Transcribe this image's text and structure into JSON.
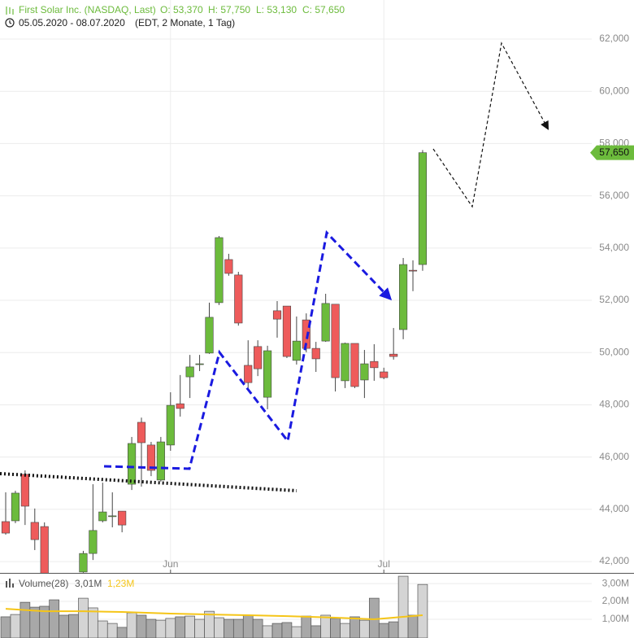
{
  "header": {
    "title": "First Solar Inc. (NASDAQ, Last)",
    "open": "O: 53,370",
    "high": "H: 57,750",
    "low": "L: 53,130",
    "close": "C: 57,650",
    "range": "05.05.2020 - 08.07.2020",
    "period": "(EDT, 2 Monate, 1 Tag)"
  },
  "chart_data": [
    {
      "type": "candlestick",
      "open": [
        43530,
        43560,
        45340,
        43500,
        43340,
        null,
        null,
        null,
        41600,
        42310,
        43560,
        43720,
        43930,
        44960,
        47330,
        46460,
        45120,
        46460,
        48040,
        49070,
        49540,
        49980,
        51910,
        53560,
        52970,
        49510,
        50230,
        48290,
        51600,
        51780,
        49700,
        51250,
        50160,
        50440,
        51850,
        48920,
        50350,
        48950,
        49660,
        49260,
        49940,
        50880,
        53150,
        53370
      ],
      "high": [
        44650,
        44710,
        45490,
        44030,
        43500,
        null,
        null,
        null,
        42410,
        44960,
        45020,
        44650,
        43930,
        46770,
        47510,
        46580,
        46770,
        48480,
        49140,
        49910,
        49910,
        51910,
        54460,
        53780,
        53090,
        50470,
        50470,
        50260,
        51970,
        51780,
        51380,
        51500,
        50410,
        52250,
        51850,
        50380,
        50350,
        50100,
        50320,
        49420,
        50940,
        53620,
        53530,
        57750
      ],
      "low": [
        43030,
        43470,
        43400,
        42440,
        41000,
        null,
        null,
        null,
        41570,
        42060,
        43500,
        43310,
        43120,
        44740,
        44870,
        45270,
        45060,
        46240,
        47550,
        48260,
        49290,
        49950,
        51820,
        52940,
        51030,
        48610,
        49100,
        47830,
        50570,
        49790,
        49540,
        50010,
        49260,
        50410,
        48510,
        48640,
        48640,
        48260,
        48920,
        48980,
        49730,
        50510,
        52350,
        53130
      ],
      "close": [
        43090,
        44620,
        44120,
        42840,
        41300,
        null,
        null,
        null,
        42310,
        43190,
        43900,
        43750,
        43400,
        46520,
        46550,
        45490,
        46580,
        47980,
        47860,
        49450,
        49570,
        51350,
        54400,
        53030,
        51130,
        48850,
        49380,
        50070,
        51280,
        49850,
        50440,
        50160,
        49760,
        51880,
        49040,
        50350,
        48700,
        49570,
        49420,
        49040,
        49850,
        53370,
        53120,
        57650
      ],
      "up_color": "#6cbb3c",
      "down_color": "#ee5b5b",
      "xlim": [
        -0.587,
        64.8
      ],
      "xticks": [
        {
          "value": 17,
          "label": "Jun"
        },
        {
          "value": 39,
          "label": "Jul"
        }
      ],
      "ylim": [
        41566,
        63495
      ],
      "yticks": [
        {
          "value": 42000,
          "label": "42,000"
        },
        {
          "value": 44000,
          "label": "44,000"
        },
        {
          "value": 46000,
          "label": "46,000"
        },
        {
          "value": 48000,
          "label": "48,000"
        },
        {
          "value": 50000,
          "label": "50,000"
        },
        {
          "value": 52000,
          "label": "52,000"
        },
        {
          "value": 54000,
          "label": "54,000"
        },
        {
          "value": 56000,
          "label": "56,000"
        },
        {
          "value": 58000,
          "label": "58,000"
        },
        {
          "value": 60000,
          "label": "60,000"
        },
        {
          "value": 62000,
          "label": "62,000"
        }
      ],
      "last": {
        "value": 57650,
        "label": "57,650"
      },
      "grid": true
    },
    {
      "type": "bar",
      "title": "Volume(28)",
      "last_label": "3,01M",
      "values": [
        1.14,
        1.27,
        1.95,
        1.68,
        1.73,
        2.09,
        1.23,
        1.27,
        2.18,
        1.64,
        0.91,
        0.77,
        0.55,
        1.36,
        1.23,
        1.0,
        0.95,
        1.05,
        1.14,
        1.18,
        1.0,
        1.45,
        1.09,
        1.0,
        1.0,
        1.23,
        1.0,
        0.64,
        0.77,
        0.82,
        0.59,
        1.18,
        0.64,
        1.23,
        1.05,
        0.77,
        1.14,
        0.95,
        2.18,
        0.77,
        0.86,
        3.41,
        1.23,
        2.95
      ],
      "colors": [
        "#a8a8a8",
        "#d4d4d4",
        "#a8a8a8",
        "#a8a8a8",
        "#a8a8a8",
        "#a8a8a8",
        "#a8a8a8",
        "#a8a8a8",
        "#d4d4d4",
        "#d4d4d4",
        "#d4d4d4",
        "#d4d4d4",
        "#a8a8a8",
        "#d4d4d4",
        "#a8a8a8",
        "#a8a8a8",
        "#d4d4d4",
        "#d4d4d4",
        "#a8a8a8",
        "#d4d4d4",
        "#d4d4d4",
        "#d4d4d4",
        "#d4d4d4",
        "#a8a8a8",
        "#a8a8a8",
        "#a8a8a8",
        "#a8a8a8",
        "#d4d4d4",
        "#a8a8a8",
        "#a8a8a8",
        "#d4d4d4",
        "#a8a8a8",
        "#a8a8a8",
        "#d4d4d4",
        "#a8a8a8",
        "#d4d4d4",
        "#a8a8a8",
        "#d4d4d4",
        "#a8a8a8",
        "#a8a8a8",
        "#a8a8a8",
        "#d4d4d4",
        "#a8a8a8",
        "#d4d4d4"
      ],
      "average": {
        "label": "1,23M",
        "color": "#f5c518",
        "x": [
          0,
          4,
          8,
          12,
          17,
          21,
          25,
          29,
          34,
          38,
          43
        ],
        "values": [
          1.59,
          1.45,
          1.45,
          1.41,
          1.32,
          1.27,
          1.23,
          1.18,
          1.09,
          1.0,
          1.23
        ]
      },
      "xlim": [
        -0.587,
        64.8
      ],
      "ylim": [
        0,
        3.55
      ],
      "yticks": [
        {
          "value": 1,
          "label": "1,00M"
        },
        {
          "value": 2,
          "label": "2,00M"
        },
        {
          "value": 3,
          "label": "3,00M"
        }
      ]
    }
  ]
}
